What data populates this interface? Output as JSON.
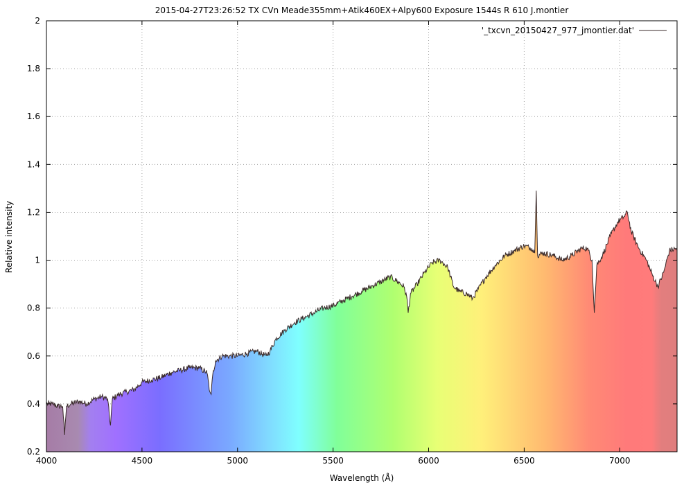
{
  "chart_data": {
    "type": "area",
    "title": "2015-04-27T23:26:52 TX CVn Meade355mm+Atik460EX+Alpy600 Exposure 1544s R 610 J.montier",
    "xlabel": "Wavelength (Å)",
    "ylabel": "Relative intensity",
    "xlim": [
      4000,
      7300
    ],
    "ylim": [
      0.2,
      2
    ],
    "xticks": [
      4000,
      4500,
      5000,
      5500,
      6000,
      6500,
      7000
    ],
    "yticks": [
      0.2,
      0.4,
      0.6,
      0.8,
      1,
      1.2,
      1.4,
      1.6,
      1.8,
      2
    ],
    "ytick_labels": [
      "0.2",
      "0.4",
      "0.6",
      "0.8",
      "1",
      "1.2",
      "1.4",
      "1.6",
      "1.8",
      "2"
    ],
    "grid": true,
    "legend": {
      "label": "'_txcvn_20150427_977_jmontier.dat'",
      "position": "top-right"
    },
    "fill": "spectral rainbow (violet to red) under curve",
    "line_color": "#3a2a2a",
    "series": [
      {
        "name": "'_txcvn_20150427_977_jmontier.dat'",
        "x": [
          4000,
          4030,
          4060,
          4085,
          4095,
          4105,
          4130,
          4170,
          4210,
          4250,
          4290,
          4320,
          4335,
          4345,
          4380,
          4420,
          4460,
          4500,
          4550,
          4600,
          4650,
          4700,
          4750,
          4800,
          4840,
          4855,
          4862,
          4870,
          4885,
          4920,
          4960,
          5000,
          5050,
          5100,
          5150,
          5170,
          5200,
          5250,
          5300,
          5350,
          5400,
          5450,
          5500,
          5550,
          5600,
          5650,
          5700,
          5750,
          5800,
          5840,
          5870,
          5885,
          5893,
          5905,
          5940,
          5980,
          6020,
          6060,
          6100,
          6130,
          6160,
          6200,
          6230,
          6260,
          6300,
          6350,
          6400,
          6450,
          6500,
          6540,
          6555,
          6563,
          6570,
          6600,
          6650,
          6700,
          6750,
          6800,
          6830,
          6855,
          6867,
          6880,
          6910,
          6950,
          6990,
          7020,
          7040,
          7060,
          7100,
          7140,
          7170,
          7200,
          7230,
          7260,
          7300
        ],
        "y": [
          0.4,
          0.4,
          0.39,
          0.39,
          0.27,
          0.39,
          0.4,
          0.41,
          0.4,
          0.42,
          0.43,
          0.42,
          0.31,
          0.42,
          0.44,
          0.45,
          0.46,
          0.49,
          0.5,
          0.51,
          0.53,
          0.54,
          0.55,
          0.55,
          0.53,
          0.45,
          0.44,
          0.52,
          0.58,
          0.6,
          0.6,
          0.6,
          0.61,
          0.62,
          0.6,
          0.62,
          0.67,
          0.71,
          0.74,
          0.76,
          0.78,
          0.8,
          0.81,
          0.83,
          0.85,
          0.87,
          0.89,
          0.91,
          0.93,
          0.91,
          0.89,
          0.85,
          0.78,
          0.86,
          0.9,
          0.95,
          0.99,
          1.0,
          0.97,
          0.89,
          0.87,
          0.86,
          0.84,
          0.88,
          0.93,
          0.98,
          1.02,
          1.04,
          1.06,
          1.05,
          1.03,
          1.29,
          1.02,
          1.03,
          1.02,
          1.0,
          1.02,
          1.05,
          1.05,
          1.0,
          0.78,
          0.98,
          1.02,
          1.1,
          1.16,
          1.18,
          1.2,
          1.12,
          1.05,
          1.0,
          0.94,
          0.89,
          0.95,
          1.04,
          1.05
        ]
      }
    ]
  }
}
